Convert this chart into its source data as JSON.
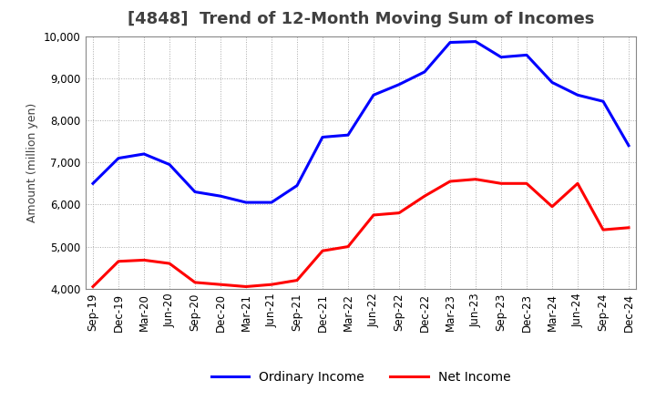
{
  "title": "[4848]  Trend of 12-Month Moving Sum of Incomes",
  "ylabel": "Amount (million yen)",
  "ylim": [
    4000,
    10000
  ],
  "yticks": [
    4000,
    5000,
    6000,
    7000,
    8000,
    9000,
    10000
  ],
  "x_labels": [
    "Sep-19",
    "Dec-19",
    "Mar-20",
    "Jun-20",
    "Sep-20",
    "Dec-20",
    "Mar-21",
    "Jun-21",
    "Sep-21",
    "Dec-21",
    "Mar-22",
    "Jun-22",
    "Sep-22",
    "Dec-22",
    "Mar-23",
    "Jun-23",
    "Sep-23",
    "Dec-23",
    "Mar-24",
    "Jun-24",
    "Sep-24",
    "Dec-24"
  ],
  "ordinary_income": [
    6500,
    7100,
    7200,
    6950,
    6300,
    6200,
    6050,
    6050,
    6450,
    7600,
    7650,
    8600,
    8850,
    9150,
    9850,
    9870,
    9500,
    9550,
    8900,
    8600,
    8450,
    7400
  ],
  "net_income": [
    4050,
    4650,
    4680,
    4600,
    4150,
    4100,
    4050,
    4100,
    4200,
    4900,
    5000,
    5750,
    5800,
    6200,
    6550,
    6600,
    6500,
    6500,
    5950,
    6500,
    5400,
    5450
  ],
  "ordinary_color": "#0000ff",
  "net_color": "#ff0000",
  "background_color": "#ffffff",
  "grid_color": "#aaaaaa",
  "title_color": "#404040",
  "line_width": 2.2,
  "title_fontsize": 13,
  "label_fontsize": 9,
  "tick_fontsize": 8.5
}
